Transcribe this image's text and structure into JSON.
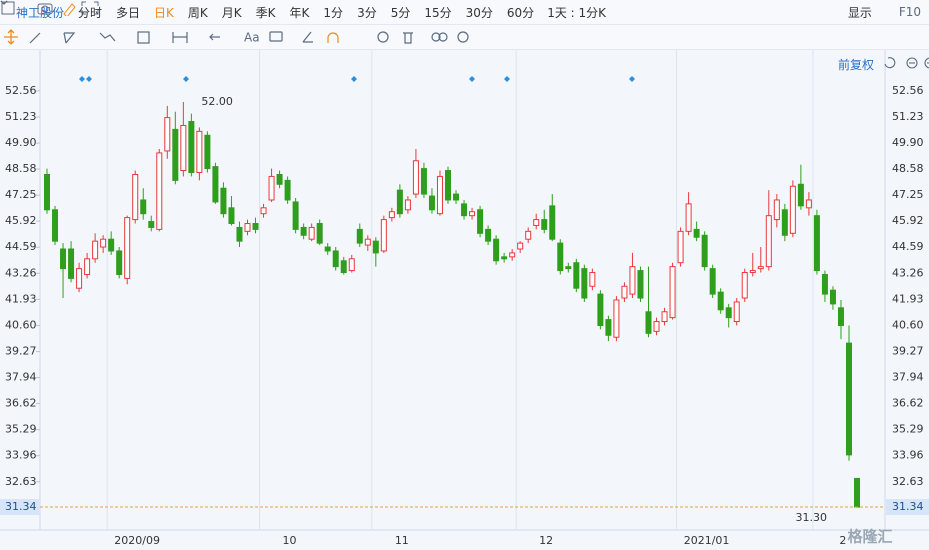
{
  "toolbar": {
    "stock": "神工股份",
    "tabs": [
      "分时",
      "多日",
      "日K",
      "周K",
      "月K",
      "季K",
      "年K",
      "1分",
      "3分",
      "5分",
      "15分",
      "30分",
      "60分"
    ],
    "period": "1天 : 1分K",
    "display": "显示",
    "f10": "F10",
    "font_tool": "Aa"
  },
  "adjust": "前复权",
  "watermark": "格隆汇",
  "chart_data": {
    "type": "candlestick",
    "up_color": "#e8383d",
    "down_color": "#2f9e1c",
    "grid": "x",
    "ylim": [
      30.68,
      53.73
    ],
    "yticks": [
      52.56,
      51.23,
      {
        "value": 49.9,
        "label": "49.90"
      },
      48.58,
      47.25,
      45.92,
      44.59,
      43.26,
      41.93,
      {
        "value": 40.6,
        "label": "40.60"
      },
      39.27,
      37.94,
      36.62,
      35.29,
      33.96,
      32.63
    ],
    "last_price": 31.34,
    "max_marker": {
      "value": 52.0,
      "label": "52.00"
    },
    "min_marker": {
      "value": 31.3,
      "label": "31.30"
    },
    "categories": [
      null,
      null,
      null,
      null,
      null,
      null,
      null,
      null,
      "2020/09",
      null,
      null,
      null,
      null,
      null,
      null,
      null,
      null,
      null,
      null,
      null,
      null,
      null,
      null,
      null,
      null,
      null,
      null,
      "10",
      null,
      null,
      null,
      null,
      null,
      null,
      null,
      null,
      null,
      null,
      null,
      null,
      null,
      "11",
      null,
      null,
      null,
      null,
      null,
      null,
      null,
      null,
      null,
      null,
      null,
      null,
      null,
      null,
      null,
      null,
      null,
      "12",
      null,
      null,
      null,
      null,
      null,
      null,
      null,
      null,
      null,
      null,
      null,
      null,
      null,
      null,
      null,
      null,
      null,
      null,
      null,
      "2021/01",
      null,
      null,
      null,
      null,
      null,
      null,
      null,
      null,
      null,
      null,
      null,
      null,
      null,
      null,
      null,
      null,
      "2",
      null,
      null,
      null,
      null,
      null
    ],
    "candles": [
      [
        48.3,
        48.6,
        46.3,
        46.5
      ],
      [
        46.5,
        46.7,
        44.7,
        44.9
      ],
      [
        44.5,
        44.8,
        42.0,
        43.5
      ],
      [
        44.5,
        44.9,
        42.8,
        43.0
      ],
      [
        42.5,
        43.8,
        42.3,
        43.5
      ],
      [
        43.2,
        44.3,
        43.0,
        44.0
      ],
      [
        44.0,
        45.3,
        43.8,
        44.9
      ],
      [
        44.6,
        45.2,
        44.3,
        45.0
      ],
      [
        45.0,
        45.4,
        44.2,
        44.4
      ],
      [
        44.4,
        44.6,
        43.0,
        43.2
      ],
      [
        43.0,
        46.2,
        42.7,
        46.1
      ],
      [
        46.0,
        48.5,
        45.8,
        48.3
      ],
      [
        47.0,
        47.6,
        46.0,
        46.3
      ],
      [
        45.9,
        46.2,
        45.4,
        45.6
      ],
      [
        45.5,
        49.6,
        45.4,
        49.4
      ],
      [
        49.5,
        51.8,
        49.1,
        51.2
      ],
      [
        50.6,
        51.5,
        47.8,
        48.0
      ],
      [
        48.5,
        52.0,
        48.2,
        50.8
      ],
      [
        51.0,
        51.4,
        48.2,
        48.4
      ],
      [
        48.4,
        50.7,
        48.0,
        50.5
      ],
      [
        50.3,
        50.5,
        48.4,
        48.6
      ],
      [
        48.7,
        48.9,
        46.8,
        46.9
      ],
      [
        47.6,
        47.9,
        46.1,
        46.3
      ],
      [
        46.6,
        47.2,
        45.7,
        45.8
      ],
      [
        45.6,
        45.9,
        44.6,
        44.9
      ],
      [
        45.4,
        46.0,
        45.2,
        45.8
      ],
      [
        45.8,
        46.1,
        45.3,
        45.5
      ],
      [
        46.3,
        46.8,
        46.1,
        46.6
      ],
      [
        47.0,
        48.6,
        46.9,
        48.2
      ],
      [
        48.3,
        48.5,
        47.6,
        47.8
      ],
      [
        48.0,
        48.2,
        46.8,
        47.0
      ],
      [
        46.9,
        47.1,
        45.3,
        45.5
      ],
      [
        45.6,
        45.8,
        45.0,
        45.2
      ],
      [
        45.0,
        45.8,
        44.9,
        45.6
      ],
      [
        45.8,
        46.0,
        44.7,
        44.8
      ],
      [
        44.6,
        44.8,
        44.2,
        44.4
      ],
      [
        44.4,
        44.6,
        43.4,
        43.6
      ],
      [
        43.9,
        44.1,
        43.2,
        43.3
      ],
      [
        43.4,
        44.2,
        43.3,
        44.0
      ],
      [
        45.5,
        45.8,
        44.6,
        44.8
      ],
      [
        44.7,
        45.2,
        44.4,
        45.0
      ],
      [
        44.9,
        45.1,
        43.6,
        44.3
      ],
      [
        44.4,
        46.2,
        44.3,
        46.0
      ],
      [
        46.1,
        46.6,
        45.9,
        46.4
      ],
      [
        47.5,
        47.8,
        46.1,
        46.3
      ],
      [
        46.5,
        47.2,
        46.3,
        47.0
      ],
      [
        47.3,
        49.6,
        47.1,
        49.0
      ],
      [
        48.6,
        48.9,
        47.1,
        47.3
      ],
      [
        47.2,
        47.6,
        46.3,
        46.5
      ],
      [
        46.3,
        48.5,
        46.2,
        48.2
      ],
      [
        48.5,
        48.7,
        46.8,
        47.0
      ],
      [
        47.3,
        47.5,
        46.8,
        47.0
      ],
      [
        46.8,
        47.0,
        46.0,
        46.2
      ],
      [
        46.2,
        46.6,
        46.0,
        46.4
      ],
      [
        46.5,
        46.7,
        45.1,
        45.3
      ],
      [
        45.5,
        45.7,
        44.7,
        44.9
      ],
      [
        45.0,
        45.2,
        43.7,
        43.9
      ],
      [
        44.1,
        44.3,
        43.8,
        44.0
      ],
      [
        44.1,
        44.5,
        43.9,
        44.3
      ],
      [
        44.5,
        44.9,
        44.3,
        44.8
      ],
      [
        45.0,
        45.6,
        44.8,
        45.4
      ],
      [
        45.7,
        46.3,
        45.5,
        46.0
      ],
      [
        46.0,
        46.5,
        45.3,
        45.5
      ],
      [
        46.7,
        47.3,
        44.9,
        45.0
      ],
      [
        44.8,
        45.0,
        43.2,
        43.4
      ],
      [
        43.6,
        43.8,
        43.3,
        43.5
      ],
      [
        43.8,
        44.0,
        42.3,
        42.5
      ],
      [
        43.5,
        43.7,
        41.8,
        42.0
      ],
      [
        42.6,
        43.5,
        42.4,
        43.3
      ],
      [
        42.2,
        42.4,
        40.4,
        40.6
      ],
      [
        40.9,
        41.1,
        39.8,
        40.1
      ],
      [
        40.0,
        42.1,
        39.8,
        41.9
      ],
      [
        42.0,
        42.8,
        41.8,
        42.6
      ],
      [
        42.2,
        44.3,
        42.0,
        43.6
      ],
      [
        43.4,
        43.6,
        41.8,
        42.0
      ],
      [
        41.3,
        43.6,
        40.0,
        40.2
      ],
      [
        40.3,
        41.0,
        40.1,
        40.8
      ],
      [
        40.8,
        41.5,
        40.6,
        41.3
      ],
      [
        41.0,
        43.8,
        40.9,
        43.6
      ],
      [
        43.8,
        45.6,
        43.6,
        45.4
      ],
      [
        45.4,
        47.4,
        45.2,
        46.8
      ],
      [
        45.5,
        45.9,
        44.9,
        45.1
      ],
      [
        45.2,
        45.4,
        43.4,
        43.6
      ],
      [
        43.5,
        43.7,
        42.0,
        42.2
      ],
      [
        42.3,
        42.5,
        41.2,
        41.4
      ],
      [
        41.5,
        41.7,
        40.5,
        41.0
      ],
      [
        40.8,
        42.0,
        40.6,
        41.8
      ],
      [
        42.0,
        43.5,
        41.8,
        43.3
      ],
      [
        43.3,
        44.3,
        43.1,
        43.4
      ],
      [
        43.5,
        44.6,
        43.3,
        43.6
      ],
      [
        43.6,
        47.5,
        43.4,
        46.2
      ],
      [
        46.0,
        47.3,
        45.6,
        47.0
      ],
      [
        46.5,
        46.8,
        44.9,
        45.2
      ],
      [
        45.3,
        48.0,
        45.1,
        47.7
      ],
      [
        47.8,
        48.8,
        46.5,
        46.7
      ],
      [
        46.6,
        47.4,
        46.2,
        47.0
      ],
      [
        46.2,
        46.5,
        43.2,
        43.4
      ],
      [
        43.2,
        43.4,
        41.8,
        42.2
      ],
      [
        42.4,
        42.6,
        41.4,
        41.7
      ],
      [
        41.5,
        41.9,
        39.9,
        40.6
      ],
      [
        39.7,
        40.6,
        33.7,
        34.0
      ],
      [
        32.8,
        32.8,
        31.3,
        31.34
      ]
    ]
  }
}
